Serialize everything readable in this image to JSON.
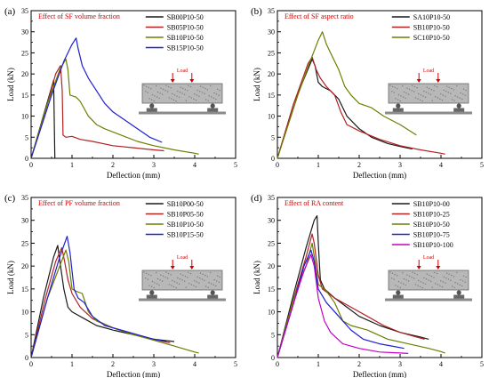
{
  "colors": {
    "black": "#1a1a1a",
    "red": "#b22222",
    "olive": "#6b7f00",
    "blue": "#1f1fd0",
    "magenta": "#c400c4",
    "annotation": "#cc0000"
  },
  "chart_data": [
    {
      "panel_label": "(a)",
      "type": "line",
      "annotation": "Effect of SF volume fraction",
      "xlabel": "Deflection (mm)",
      "ylabel": "Load (kN)",
      "xlim": [
        0,
        5
      ],
      "ylim": [
        0,
        35
      ],
      "x_ticks": [
        "0",
        "1",
        "2",
        "3",
        "4",
        "5"
      ],
      "y_ticks": [
        "0",
        "5",
        "10",
        "15",
        "20",
        "25",
        "30",
        "35"
      ],
      "legend_position": "top-right",
      "inset": {
        "load_label": "Load"
      },
      "series": [
        {
          "name": "SB00P10-50",
          "color": "black",
          "points": [
            [
              0,
              0
            ],
            [
              0.55,
              18.5
            ],
            [
              0.58,
              0
            ]
          ]
        },
        {
          "name": "SB05P10-50",
          "color": "red",
          "points": [
            [
              0,
              0
            ],
            [
              0.4,
              13
            ],
            [
              0.6,
              20
            ],
            [
              0.72,
              22
            ],
            [
              0.76,
              16
            ],
            [
              0.78,
              5.5
            ],
            [
              0.85,
              5
            ],
            [
              1.0,
              5.2
            ],
            [
              1.2,
              4.5
            ],
            [
              1.5,
              4
            ],
            [
              2.0,
              3
            ],
            [
              2.5,
              2.5
            ],
            [
              3.0,
              2
            ],
            [
              3.25,
              1.8
            ]
          ]
        },
        {
          "name": "SB10P10-50",
          "color": "olive",
          "points": [
            [
              0,
              0
            ],
            [
              0.4,
              13
            ],
            [
              0.7,
              21
            ],
            [
              0.85,
              23.5
            ],
            [
              0.9,
              21
            ],
            [
              0.95,
              15
            ],
            [
              1.1,
              14.5
            ],
            [
              1.2,
              13.5
            ],
            [
              1.4,
              10
            ],
            [
              1.6,
              8
            ],
            [
              1.8,
              7
            ],
            [
              2.2,
              5.5
            ],
            [
              2.6,
              4
            ],
            [
              3.0,
              3
            ],
            [
              3.5,
              2
            ],
            [
              4.0,
              1.2
            ],
            [
              4.1,
              1
            ]
          ]
        },
        {
          "name": "SB15P10-50",
          "color": "blue",
          "points": [
            [
              0,
              0
            ],
            [
              0.5,
              15
            ],
            [
              0.8,
              23
            ],
            [
              1.0,
              27
            ],
            [
              1.1,
              28.5
            ],
            [
              1.15,
              26
            ],
            [
              1.25,
              22
            ],
            [
              1.4,
              19
            ],
            [
              1.6,
              16
            ],
            [
              1.8,
              13
            ],
            [
              2.0,
              11
            ],
            [
              2.3,
              9
            ],
            [
              2.6,
              7
            ],
            [
              2.9,
              5
            ],
            [
              3.2,
              3.8
            ]
          ]
        }
      ]
    },
    {
      "panel_label": "(b)",
      "type": "line",
      "annotation": "Effect of SF aspect ratio",
      "xlabel": "Deflection (mm)",
      "ylabel": "Load (kN)",
      "xlim": [
        0,
        5
      ],
      "ylim": [
        0,
        35
      ],
      "x_ticks": [
        "0",
        "1",
        "2",
        "3",
        "4",
        "5"
      ],
      "y_ticks": [
        "0",
        "5",
        "10",
        "15",
        "20",
        "25",
        "30",
        "35"
      ],
      "legend_position": "top-right",
      "inset": {
        "load_label": "Load"
      },
      "series": [
        {
          "name": "SA10P10-50",
          "color": "black",
          "points": [
            [
              0,
              0
            ],
            [
              0.4,
              13
            ],
            [
              0.7,
              20
            ],
            [
              0.85,
              23.5
            ],
            [
              0.92,
              22
            ],
            [
              1.0,
              18
            ],
            [
              1.1,
              17
            ],
            [
              1.3,
              16
            ],
            [
              1.5,
              14
            ],
            [
              1.7,
              10
            ],
            [
              2.0,
              7
            ],
            [
              2.3,
              5
            ],
            [
              2.7,
              3.5
            ],
            [
              3.0,
              2.8
            ],
            [
              3.3,
              2.2
            ]
          ]
        },
        {
          "name": "SB10P10-50",
          "color": "red",
          "points": [
            [
              0,
              0
            ],
            [
              0.4,
              13
            ],
            [
              0.75,
              22.5
            ],
            [
              0.85,
              24
            ],
            [
              0.95,
              21
            ],
            [
              1.05,
              19
            ],
            [
              1.2,
              17
            ],
            [
              1.4,
              15
            ],
            [
              1.55,
              11
            ],
            [
              1.7,
              8
            ],
            [
              2.0,
              6.5
            ],
            [
              2.5,
              4.5
            ],
            [
              3.0,
              3
            ],
            [
              3.5,
              2
            ],
            [
              4.0,
              1.2
            ],
            [
              4.1,
              1
            ]
          ]
        },
        {
          "name": "SC10P10-50",
          "color": "olive",
          "points": [
            [
              0,
              0
            ],
            [
              0.5,
              15
            ],
            [
              0.8,
              23
            ],
            [
              1.0,
              28
            ],
            [
              1.1,
              30
            ],
            [
              1.2,
              27
            ],
            [
              1.35,
              24
            ],
            [
              1.5,
              21
            ],
            [
              1.65,
              17
            ],
            [
              1.8,
              15
            ],
            [
              2.0,
              13
            ],
            [
              2.3,
              12
            ],
            [
              2.6,
              10
            ],
            [
              3.0,
              8
            ],
            [
              3.4,
              5.5
            ]
          ]
        }
      ]
    },
    {
      "panel_label": "(c)",
      "type": "line",
      "annotation": "Effect of PF volume fraction",
      "xlabel": "Deflection (mm)",
      "ylabel": "Load (kN)",
      "xlim": [
        0,
        5
      ],
      "ylim": [
        0,
        35
      ],
      "x_ticks": [
        "0",
        "1",
        "2",
        "3",
        "4",
        "5"
      ],
      "y_ticks": [
        "0",
        "5",
        "10",
        "15",
        "20",
        "25",
        "30",
        "35"
      ],
      "legend_position": "top-right",
      "inset": {
        "load_label": "Load"
      },
      "series": [
        {
          "name": "SB10P00-50",
          "color": "black",
          "points": [
            [
              0,
              0
            ],
            [
              0.3,
              13
            ],
            [
              0.55,
              22
            ],
            [
              0.65,
              24.5
            ],
            [
              0.72,
              20
            ],
            [
              0.8,
              15
            ],
            [
              0.9,
              11
            ],
            [
              1.0,
              10
            ],
            [
              1.3,
              8.5
            ],
            [
              1.6,
              7
            ],
            [
              2.0,
              6
            ],
            [
              2.5,
              5
            ],
            [
              3.0,
              4
            ],
            [
              3.5,
              3.5
            ]
          ]
        },
        {
          "name": "SB10P05-50",
          "color": "red",
          "points": [
            [
              0,
              0
            ],
            [
              0.35,
              13
            ],
            [
              0.6,
              21
            ],
            [
              0.75,
              24
            ],
            [
              0.82,
              21
            ],
            [
              0.9,
              17
            ],
            [
              1.0,
              14
            ],
            [
              1.2,
              11
            ],
            [
              1.5,
              8.5
            ],
            [
              2.0,
              6.5
            ],
            [
              2.5,
              5
            ],
            [
              3.0,
              4
            ],
            [
              3.4,
              3.2
            ]
          ]
        },
        {
          "name": "SB10P10-50",
          "color": "olive",
          "points": [
            [
              0,
              0
            ],
            [
              0.4,
              13
            ],
            [
              0.7,
              20
            ],
            [
              0.85,
              23.5
            ],
            [
              0.92,
              21
            ],
            [
              1.0,
              15
            ],
            [
              1.1,
              14.5
            ],
            [
              1.25,
              14
            ],
            [
              1.4,
              10
            ],
            [
              1.6,
              8
            ],
            [
              2.0,
              6.5
            ],
            [
              2.5,
              5
            ],
            [
              3.0,
              3.8
            ],
            [
              3.5,
              2.5
            ],
            [
              4.0,
              1.2
            ],
            [
              4.1,
              1
            ]
          ]
        },
        {
          "name": "SB10P15-50",
          "color": "blue",
          "points": [
            [
              0,
              0
            ],
            [
              0.4,
              13
            ],
            [
              0.7,
              22
            ],
            [
              0.88,
              26.5
            ],
            [
              0.95,
              23
            ],
            [
              1.05,
              15
            ],
            [
              1.15,
              13
            ],
            [
              1.3,
              12
            ],
            [
              1.5,
              9
            ],
            [
              1.8,
              7
            ],
            [
              2.2,
              6
            ],
            [
              2.6,
              5
            ],
            [
              3.0,
              4
            ],
            [
              3.3,
              3.5
            ]
          ]
        }
      ]
    },
    {
      "panel_label": "(d)",
      "type": "line",
      "annotation": "Effect of RA content",
      "xlabel": "Deflection (mm)",
      "ylabel": "Load (kN)",
      "xlim": [
        0,
        5
      ],
      "ylim": [
        0,
        35
      ],
      "x_ticks": [
        "0",
        "1",
        "2",
        "3",
        "4",
        "5"
      ],
      "y_ticks": [
        "0",
        "5",
        "10",
        "15",
        "20",
        "25",
        "30",
        "35"
      ],
      "legend_position": "top-right",
      "inset": {
        "load_label": "Load"
      },
      "series": [
        {
          "name": "SB10P10-00",
          "color": "black",
          "points": [
            [
              0,
              0
            ],
            [
              0.4,
              14
            ],
            [
              0.7,
              24
            ],
            [
              0.9,
              30
            ],
            [
              0.97,
              31
            ],
            [
              1.0,
              25
            ],
            [
              1.05,
              17
            ],
            [
              1.15,
              15
            ],
            [
              1.4,
              13
            ],
            [
              1.7,
              11
            ],
            [
              2.0,
              9
            ],
            [
              2.5,
              7
            ],
            [
              3.0,
              5.5
            ],
            [
              3.5,
              4.5
            ],
            [
              3.7,
              4
            ]
          ]
        },
        {
          "name": "SB10P10-25",
          "color": "red",
          "points": [
            [
              0,
              0
            ],
            [
              0.4,
              13
            ],
            [
              0.7,
              22
            ],
            [
              0.85,
              27
            ],
            [
              0.9,
              25
            ],
            [
              1.0,
              18
            ],
            [
              1.1,
              15
            ],
            [
              1.4,
              13
            ],
            [
              1.8,
              11
            ],
            [
              2.2,
              9
            ],
            [
              2.6,
              7
            ],
            [
              3.0,
              5.5
            ],
            [
              3.4,
              4.5
            ],
            [
              3.6,
              4
            ]
          ]
        },
        {
          "name": "SB10P10-50",
          "color": "olive",
          "points": [
            [
              0,
              0
            ],
            [
              0.4,
              13
            ],
            [
              0.7,
              20
            ],
            [
              0.85,
              25
            ],
            [
              0.92,
              21
            ],
            [
              1.0,
              16
            ],
            [
              1.2,
              14.5
            ],
            [
              1.4,
              12
            ],
            [
              1.6,
              8
            ],
            [
              1.8,
              7
            ],
            [
              2.2,
              6
            ],
            [
              2.7,
              4
            ],
            [
              3.2,
              3
            ],
            [
              3.7,
              2
            ],
            [
              4.0,
              1.3
            ],
            [
              4.1,
              1
            ]
          ]
        },
        {
          "name": "SB10P10-75",
          "color": "blue",
          "points": [
            [
              0,
              0
            ],
            [
              0.4,
              12
            ],
            [
              0.65,
              20
            ],
            [
              0.82,
              23.5
            ],
            [
              0.9,
              21
            ],
            [
              1.0,
              15
            ],
            [
              1.2,
              12
            ],
            [
              1.5,
              9
            ],
            [
              1.8,
              6
            ],
            [
              2.1,
              4
            ],
            [
              2.5,
              3
            ],
            [
              2.8,
              2.5
            ],
            [
              3.1,
              2
            ]
          ]
        },
        {
          "name": "SB10P10-100",
          "color": "magenta",
          "points": [
            [
              0,
              0
            ],
            [
              0.4,
              12
            ],
            [
              0.65,
              19
            ],
            [
              0.82,
              22.5
            ],
            [
              0.9,
              20
            ],
            [
              1.0,
              13
            ],
            [
              1.15,
              8
            ],
            [
              1.3,
              5.5
            ],
            [
              1.6,
              3
            ],
            [
              2.0,
              2
            ],
            [
              2.5,
              1.2
            ],
            [
              3.0,
              1
            ],
            [
              3.2,
              0.9
            ]
          ]
        }
      ]
    }
  ]
}
